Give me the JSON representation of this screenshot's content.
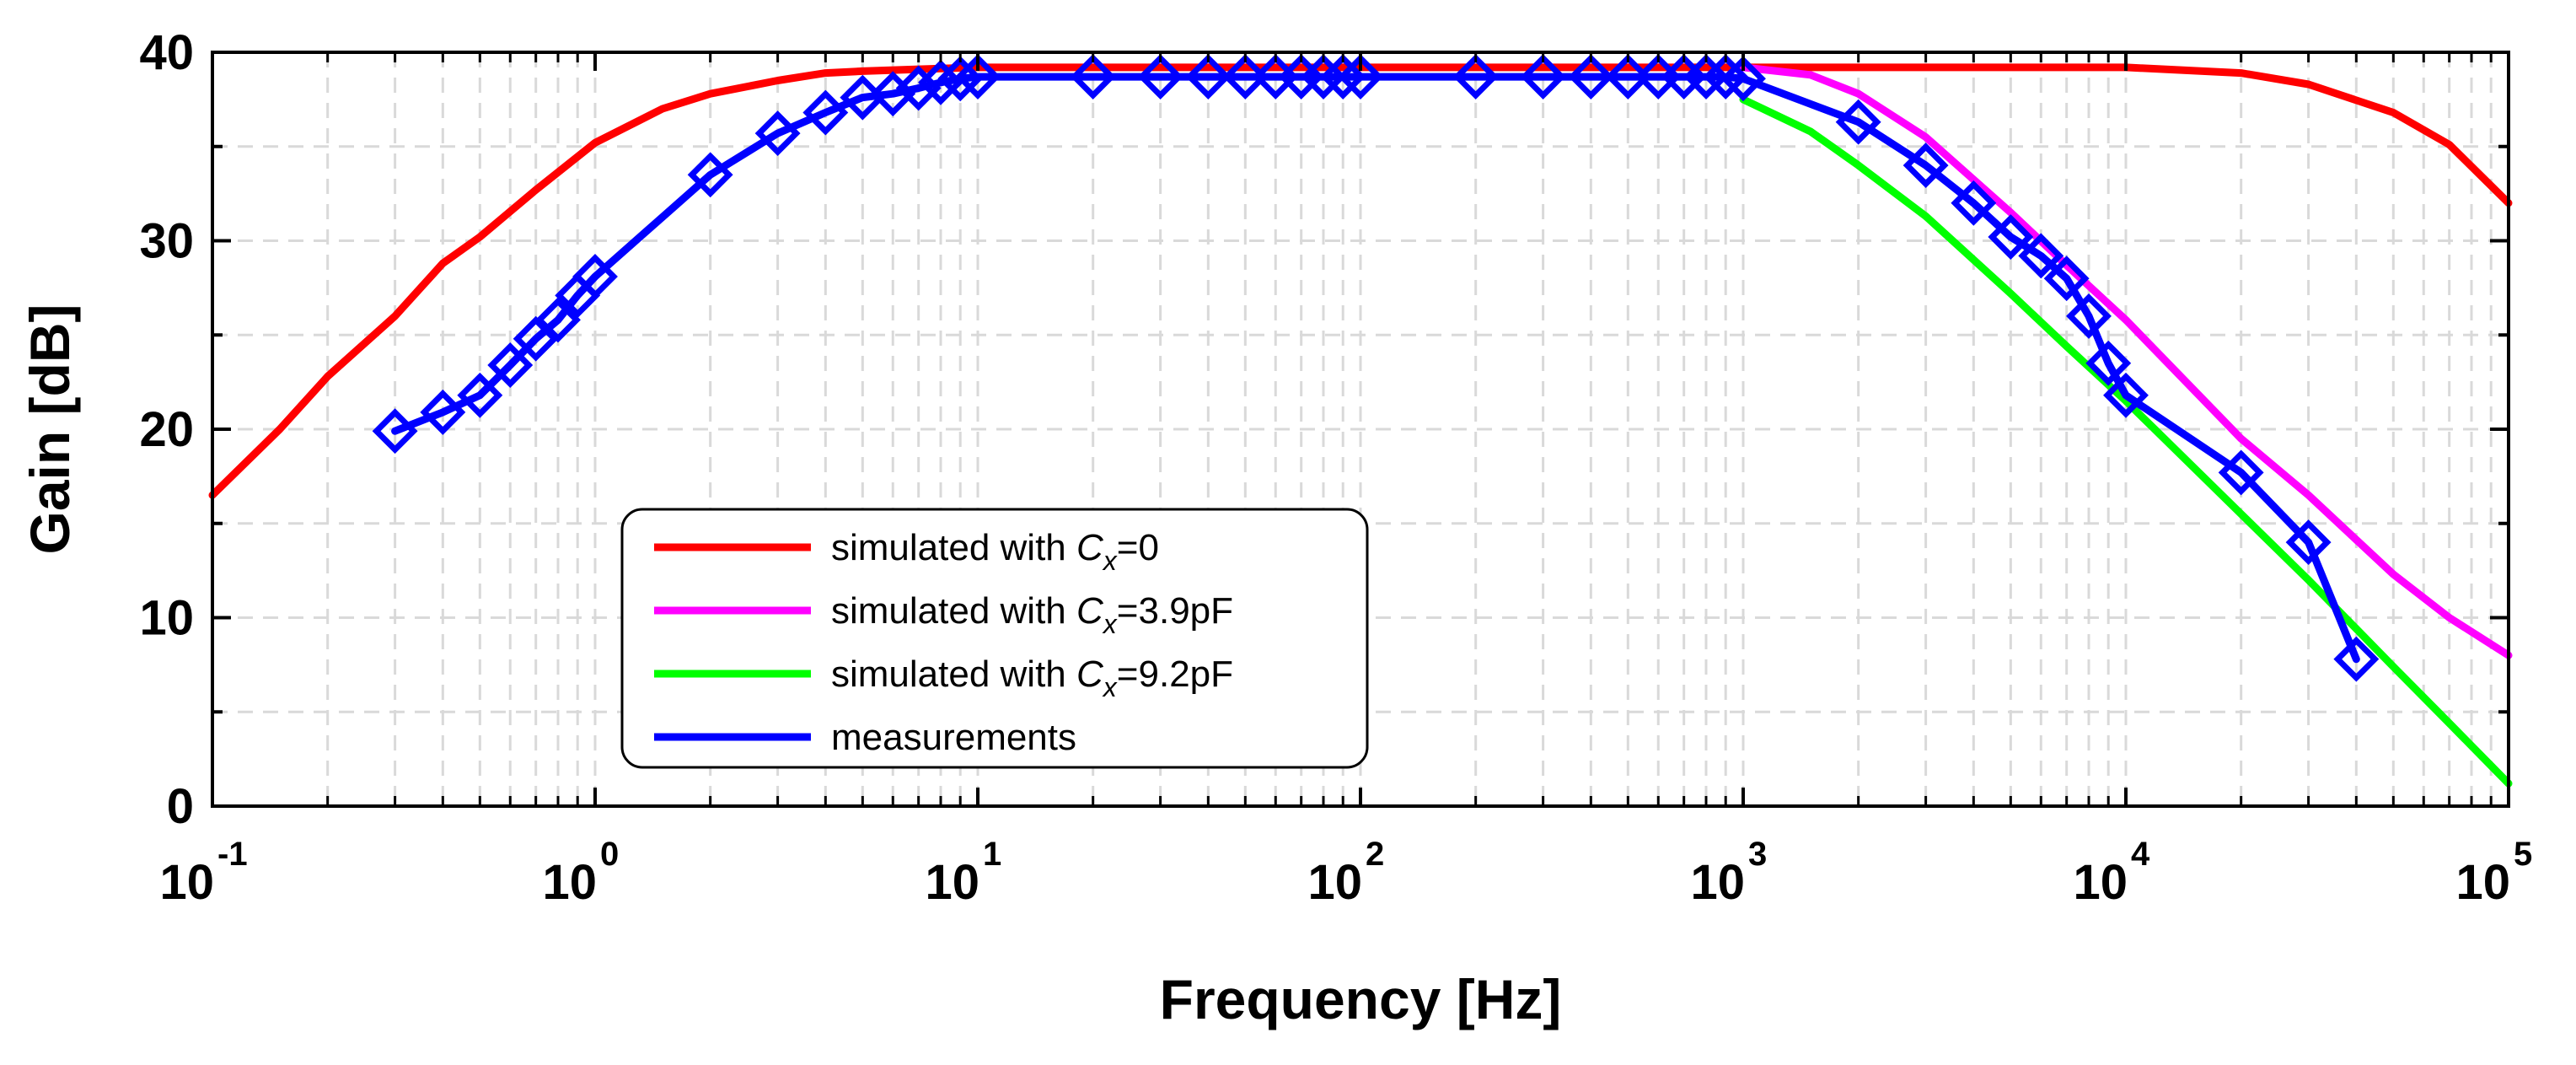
{
  "chart_data": {
    "type": "line",
    "xscale": "log",
    "xlim": [
      0.1,
      100000
    ],
    "ylim": [
      0,
      40
    ],
    "xlabel": "Frequency [Hz]",
    "ylabel": "Gain [dB]",
    "grid": true,
    "legend_position": "lower-left",
    "x_ticks": [
      {
        "base": "10",
        "exp": "-1",
        "value": 0.1
      },
      {
        "base": "10",
        "exp": "0",
        "value": 1
      },
      {
        "base": "10",
        "exp": "1",
        "value": 10
      },
      {
        "base": "10",
        "exp": "2",
        "value": 100
      },
      {
        "base": "10",
        "exp": "3",
        "value": 1000
      },
      {
        "base": "10",
        "exp": "4",
        "value": 10000
      },
      {
        "base": "10",
        "exp": "5",
        "value": 100000
      }
    ],
    "y_ticks": [
      {
        "label": "0",
        "value": 0
      },
      {
        "label": "10",
        "value": 10
      },
      {
        "label": "20",
        "value": 20
      },
      {
        "label": "30",
        "value": 30
      },
      {
        "label": "40",
        "value": 40
      }
    ],
    "series": [
      {
        "name": "simulated with Cx=0",
        "legend_prefix": "simulated with ",
        "legend_var": "C",
        "legend_sub": "x",
        "legend_suffix": "=0",
        "color": "#ff0000",
        "marker": "none",
        "x": [
          0.1,
          0.15,
          0.2,
          0.3,
          0.4,
          0.5,
          0.7,
          1,
          1.5,
          2,
          3,
          4,
          5,
          7,
          10,
          100,
          1000,
          5000,
          10000,
          20000,
          30000,
          50000,
          70000,
          100000
        ],
        "y": [
          16.5,
          20.0,
          22.8,
          26.0,
          28.8,
          30.2,
          32.7,
          35.2,
          37.0,
          37.8,
          38.5,
          38.9,
          39.0,
          39.1,
          39.2,
          39.2,
          39.2,
          39.2,
          39.2,
          38.9,
          38.3,
          36.8,
          35.1,
          32.0
        ]
      },
      {
        "name": "simulated with Cx=3.9pF",
        "legend_prefix": "simulated with ",
        "legend_var": "C",
        "legend_sub": "x",
        "legend_suffix": "=3.9pF",
        "color": "#ff00ff",
        "marker": "none",
        "x": [
          1000,
          1500,
          2000,
          3000,
          5000,
          7000,
          10000,
          20000,
          30000,
          50000,
          70000,
          100000
        ],
        "y": [
          39.2,
          38.8,
          37.8,
          35.5,
          31.5,
          28.7,
          25.8,
          19.5,
          16.5,
          12.3,
          10.0,
          8.0
        ]
      },
      {
        "name": "simulated with Cx=9.2pF",
        "legend_prefix": "simulated with ",
        "legend_var": "C",
        "legend_sub": "x",
        "legend_suffix": "=9.2pF",
        "color": "#00ff00",
        "marker": "none",
        "x": [
          1000,
          1500,
          2000,
          3000,
          5000,
          7000,
          10000,
          20000,
          30000,
          50000,
          70000,
          100000
        ],
        "y": [
          37.5,
          35.8,
          34.0,
          31.3,
          27.2,
          24.4,
          21.5,
          15.5,
          12.0,
          7.4,
          4.4,
          1.2
        ]
      },
      {
        "name": "measurements",
        "legend_prefix": "measurements",
        "legend_var": "",
        "legend_sub": "",
        "legend_suffix": "",
        "color": "#0000ff",
        "marker": "diamond",
        "x": [
          0.3,
          0.4,
          0.5,
          0.6,
          0.7,
          0.8,
          0.9,
          1,
          2,
          3,
          4,
          5,
          6,
          7,
          8,
          9,
          10,
          20,
          30,
          40,
          50,
          60,
          70,
          80,
          90,
          100,
          200,
          300,
          400,
          500,
          600,
          700,
          800,
          900,
          1000,
          2000,
          3000,
          4000,
          5000,
          6000,
          7000,
          8000,
          9000,
          10000,
          20000,
          30000,
          40000
        ],
        "y": [
          19.9,
          20.9,
          21.8,
          23.4,
          24.8,
          25.8,
          27.1,
          28.1,
          33.5,
          35.7,
          36.8,
          37.6,
          37.8,
          38.1,
          38.4,
          38.6,
          38.7,
          38.7,
          38.7,
          38.7,
          38.7,
          38.7,
          38.7,
          38.7,
          38.7,
          38.7,
          38.7,
          38.7,
          38.7,
          38.7,
          38.7,
          38.7,
          38.7,
          38.7,
          38.6,
          36.3,
          34.0,
          32.0,
          30.2,
          29.2,
          28.0,
          26.0,
          23.5,
          21.8,
          17.7,
          14.0,
          7.8
        ]
      }
    ]
  }
}
